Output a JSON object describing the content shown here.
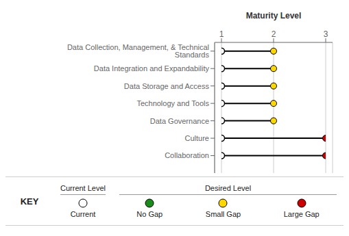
{
  "chart_data": {
    "type": "dumbbell",
    "x_label": "Maturity Level",
    "categories": [
      "Data Collection, Management, & Technical Standards",
      "Data Integration and Expandability",
      "Data Storage and Access",
      "Technology and Tools",
      "Data Governance",
      "Culture",
      "Collaboration"
    ],
    "series": [
      {
        "name": "Current Level",
        "color": "#FFFFFF",
        "values": [
          1,
          1,
          1,
          1,
          1,
          1,
          1
        ],
        "legend_entries": [
          {
            "name": "Current",
            "color": "#FFFFFF"
          }
        ]
      },
      {
        "name": "Desired Level",
        "colors": [
          "#FFD700",
          "#FFD700",
          "#FFD700",
          "#FFD700",
          "#FFD700",
          "#CC0000",
          "#CC0000"
        ],
        "values": [
          2,
          2,
          2,
          2,
          2,
          3,
          3
        ],
        "legend_entries": [
          {
            "name": "No Gap",
            "color": "#1A8C1A"
          },
          {
            "name": "Small Gap",
            "color": "#FFD700"
          },
          {
            "name": "Large Gap",
            "color": "#CC0000"
          }
        ]
      }
    ],
    "xlim": [
      1,
      3
    ],
    "xticks": [
      1,
      2,
      3
    ],
    "grid": true,
    "legend_title": "KEY"
  }
}
